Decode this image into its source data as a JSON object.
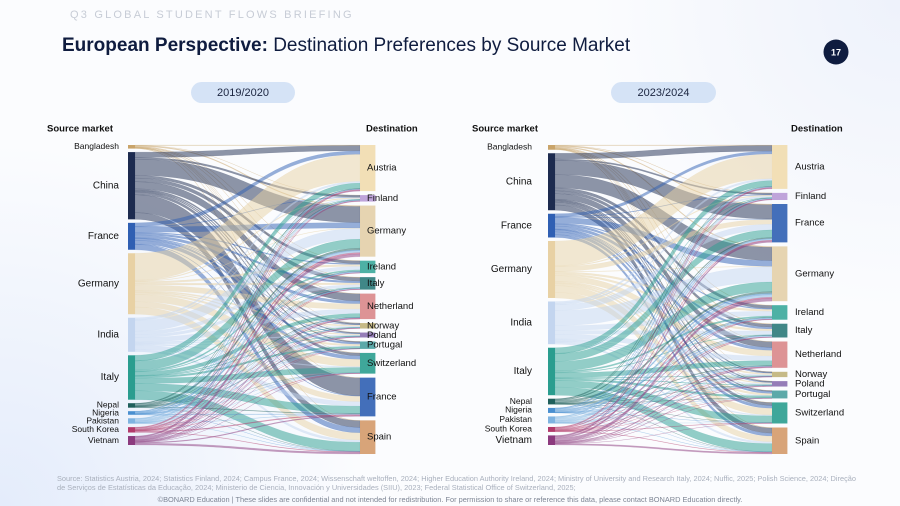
{
  "header": {
    "kicker": "Q3 GLOBAL STUDENT FLOWS BRIEFING",
    "title_bold": "European Perspective:",
    "title_rest": "Destination Preferences by Source Market",
    "page": "17"
  },
  "chart_data": [
    {
      "type": "sankey",
      "title": "2019/2020",
      "source_label": "Source market",
      "destination_label": "Destination",
      "sources": [
        "Bangladesh",
        "China",
        "France",
        "Germany",
        "India",
        "Italy",
        "Nepal",
        "Nigeria",
        "Pakistan",
        "South Korea",
        "Vietnam"
      ],
      "destinations": [
        "Austria",
        "Finland",
        "Germany",
        "Ireland",
        "Italy",
        "Netherland",
        "Norway",
        "Poland",
        "Portugal",
        "Switzerland",
        "France",
        "Spain"
      ],
      "source_colors": [
        "#c9a46a",
        "#1d2b4f",
        "#2f5fb3",
        "#e8d1a4",
        "#c3d5ef",
        "#2a9d8f",
        "#1f5f5b",
        "#4a8fd0",
        "#7fb3e0",
        "#b23a6b",
        "#8c3a7e"
      ],
      "destination_colors": [
        "#f1dcae",
        "#b89ad6",
        "#e3cfa8",
        "#3aa89b",
        "#2b7a7a",
        "#d9878a",
        "#c0b27a",
        "#8a6fb0",
        "#4aa0a0",
        "#2a9d8f",
        "#2f5fb3",
        "#d49a6a"
      ],
      "flows": [
        [
          0.5,
          0.2,
          1,
          0.3,
          0.5,
          0.3,
          0.1,
          0.1,
          0.1,
          0.2,
          0.3,
          0.4
        ],
        [
          6,
          2,
          18,
          3,
          4,
          8,
          1.5,
          1,
          1,
          3,
          20,
          7.5
        ],
        [
          4,
          0.5,
          6,
          1,
          2,
          3,
          0.5,
          0.5,
          2,
          4,
          0.5,
          6
        ],
        [
          30,
          1,
          0.5,
          2,
          2,
          6,
          1.5,
          1,
          2,
          8,
          6,
          8
        ],
        [
          2,
          1,
          12,
          4,
          3,
          5,
          1,
          1,
          0.5,
          1,
          5,
          2.5
        ],
        [
          6,
          0.5,
          10,
          1.5,
          0.5,
          4,
          0.5,
          0.5,
          2,
          6,
          8,
          10
        ],
        [
          0.5,
          0.3,
          2,
          0.2,
          0.2,
          0.3,
          0.1,
          0.2,
          0.3,
          0.1,
          0.6,
          0.2
        ],
        [
          0.3,
          0.3,
          1,
          0.8,
          0.3,
          0.3,
          0.1,
          0.2,
          0.1,
          0.1,
          0.4,
          0.1
        ],
        [
          0.5,
          0.5,
          2,
          0.5,
          0.8,
          0.3,
          0.2,
          0.3,
          0.1,
          0.1,
          0.4,
          0.3
        ],
        [
          0.8,
          0.3,
          1.5,
          0.3,
          0.3,
          0.4,
          0.2,
          0.2,
          0.1,
          0.4,
          1,
          0.5
        ],
        [
          0.8,
          0.6,
          3,
          0.3,
          0.3,
          0.8,
          0.4,
          0.5,
          0.1,
          0.2,
          1,
          2
        ]
      ]
    },
    {
      "type": "sankey",
      "title": "2023/2024",
      "source_label": "Source market",
      "destination_label": "Destination",
      "sources": [
        "Bangladesh",
        "China",
        "France",
        "Germany",
        "India",
        "Italy",
        "Nepal",
        "Nigeria",
        "Pakistan",
        "South Korea",
        "Vietnam"
      ],
      "destinations": [
        "Austria",
        "Finland",
        "France",
        "Germany",
        "Ireland",
        "Italy",
        "Netherland",
        "Norway",
        "Poland",
        "Portugal",
        "Switzerland",
        "Spain"
      ],
      "source_colors": [
        "#c9a46a",
        "#1d2b4f",
        "#2f5fb3",
        "#e8d1a4",
        "#c3d5ef",
        "#2a9d8f",
        "#1f5f5b",
        "#4a8fd0",
        "#7fb3e0",
        "#b23a6b",
        "#8c3a7e"
      ],
      "destination_colors": [
        "#f1dcae",
        "#b89ad6",
        "#2f5fb3",
        "#e3cfa8",
        "#3aa89b",
        "#2b7a7a",
        "#d9878a",
        "#c0b27a",
        "#8a6fb0",
        "#4aa0a0",
        "#2a9d8f",
        "#d49a6a"
      ],
      "flows": [
        [
          0.5,
          0.3,
          0.8,
          1,
          0.4,
          0.6,
          0.3,
          0.1,
          0.2,
          0.1,
          0.2,
          0.5
        ],
        [
          6,
          1.5,
          15,
          14,
          3,
          3,
          6,
          1,
          1,
          1,
          3,
          5.5
        ],
        [
          3,
          0.5,
          0.5,
          6,
          1,
          2,
          3,
          0.5,
          0.5,
          2,
          3,
          3
        ],
        [
          26,
          1,
          5,
          0.5,
          2,
          2,
          6,
          1.5,
          1,
          2,
          7,
          6
        ],
        [
          2,
          1.5,
          6,
          16,
          5,
          4,
          5,
          1,
          1,
          0.5,
          1,
          2
        ],
        [
          6,
          0.5,
          8,
          10,
          1.5,
          0.5,
          5,
          0.5,
          0.5,
          2,
          7,
          8.5
        ],
        [
          0.5,
          0.4,
          1,
          2,
          0.3,
          0.3,
          0.5,
          0.1,
          0.3,
          0.3,
          0.2,
          0.1
        ],
        [
          0.3,
          0.4,
          0.8,
          1.5,
          1,
          0.4,
          0.3,
          0.1,
          0.2,
          0.1,
          0.1,
          0.1
        ],
        [
          0.5,
          0.5,
          1,
          2.5,
          0.5,
          1,
          0.4,
          0.2,
          0.3,
          0.1,
          0.1,
          0.3
        ],
        [
          0.6,
          0.3,
          0.8,
          1.2,
          0.3,
          0.3,
          0.4,
          0.2,
          0.2,
          0.1,
          0.4,
          0.4
        ],
        [
          0.8,
          0.6,
          1.5,
          3,
          0.3,
          0.4,
          0.8,
          0.4,
          0.5,
          0.1,
          0.2,
          1.5
        ]
      ]
    }
  ],
  "footer": {
    "sources": "Source: Statistics Austria, 2024; Statistics Finland, 2024; Campus France, 2024; Wissenschaft weltoffen, 2024; Higher Education Authority Ireland, 2024; Ministry of University and Research Italy, 2024; Nuffic, 2025; Polish Science, 2024; Direção de Serviços de Estatísticas da Educação, 2024; Ministerio de Ciencia, Innovación y Universidades (SIIU), 2023; Federal Statistical Office of Switzerland, 2025;",
    "copyright": "©BONARD Education | These slides are confidential and not intended for redistribution. For permission to share or reference this data, please contact BONARD Education directly."
  }
}
